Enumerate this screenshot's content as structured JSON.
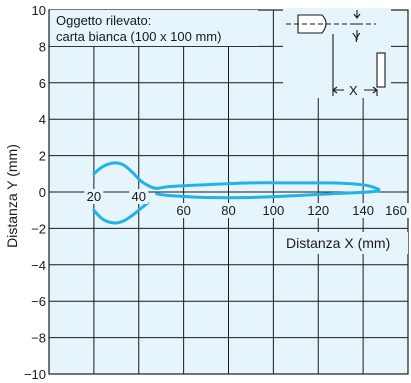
{
  "chart_data": {
    "type": "line",
    "annotation_lines": [
      "Oggetto rilevato:",
      "carta bianca (100 x 100 mm)"
    ],
    "xlabel": "Distanza X (mm)",
    "ylabel": "Distanza Y (mm)",
    "xlim": [
      0,
      160
    ],
    "ylim": [
      -10,
      10
    ],
    "x_ticks": [
      20,
      40,
      60,
      80,
      100,
      120,
      140,
      160
    ],
    "y_ticks": [
      10,
      8,
      6,
      4,
      2,
      0,
      -2,
      -4,
      -6,
      -8,
      -10
    ],
    "y_tick_labels": [
      "10",
      "8",
      "6",
      "4",
      "2",
      "0",
      "−2",
      "−4",
      "−6",
      "−8",
      "−10"
    ],
    "grid": true,
    "colors": {
      "plot_background": "#e6f4fb",
      "curve": "#22b3e6",
      "grid": "#1a1a1a"
    },
    "series": [
      {
        "x": [
          20,
          24,
          29,
          33,
          37,
          41,
          45,
          48,
          54,
          70,
          90,
          110,
          125,
          135,
          142,
          147
        ],
        "y": [
          1.0,
          1.4,
          1.6,
          1.5,
          1.1,
          0.6,
          0.3,
          0.2,
          0.3,
          0.4,
          0.5,
          0.5,
          0.5,
          0.45,
          0.35,
          0.15
        ]
      },
      {
        "x": [
          20,
          24,
          29,
          33,
          37,
          41,
          44
        ],
        "y": [
          -1.0,
          -1.5,
          -1.7,
          -1.6,
          -1.3,
          -0.9,
          -0.6
        ]
      },
      {
        "x": [
          48,
          54,
          70,
          90,
          110,
          125,
          135,
          142,
          147
        ],
        "y": [
          -0.1,
          -0.2,
          -0.3,
          -0.3,
          -0.2,
          -0.1,
          -0.05,
          0.0,
          0.05
        ]
      }
    ],
    "inset_labels": {
      "x": "X",
      "y": "Y"
    }
  }
}
